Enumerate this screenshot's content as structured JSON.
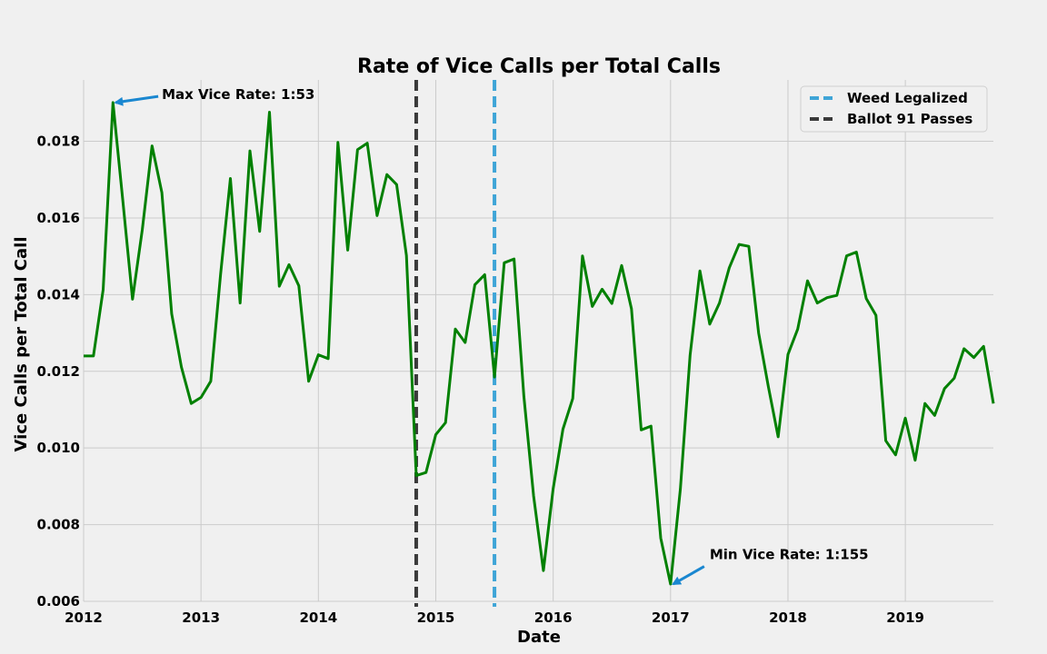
{
  "chart_data": {
    "type": "line",
    "title": "Rate of Vice Calls per Total Calls",
    "xlabel": "Date",
    "ylabel": "Vice Calls per Total Call",
    "xlim": [
      "2012-01",
      "2019-10"
    ],
    "ylim": [
      0.006,
      0.0196
    ],
    "x_ticks": [
      "2012",
      "2013",
      "2014",
      "2015",
      "2016",
      "2017",
      "2018",
      "2019"
    ],
    "y_ticks": [
      0.006,
      0.008,
      0.01,
      0.012,
      0.014,
      0.016,
      0.018
    ],
    "y_tick_labels": [
      "0.006",
      "0.008",
      "0.010",
      "0.012",
      "0.014",
      "0.016",
      "0.018"
    ],
    "grid": true,
    "line_color": "#008000",
    "series": [
      {
        "x": [
          "2012-01",
          "2012-02",
          "2012-03",
          "2012-04",
          "2012-05",
          "2012-06",
          "2012-07",
          "2012-08",
          "2012-09",
          "2012-10",
          "2012-11",
          "2012-12",
          "2013-01",
          "2013-02",
          "2013-03",
          "2013-04",
          "2013-05",
          "2013-06",
          "2013-07",
          "2013-08",
          "2013-09",
          "2013-10",
          "2013-11",
          "2013-12",
          "2014-01",
          "2014-02",
          "2014-03",
          "2014-04",
          "2014-05",
          "2014-06",
          "2014-07",
          "2014-08",
          "2014-09",
          "2014-10",
          "2014-11",
          "2014-12",
          "2015-01",
          "2015-02",
          "2015-03",
          "2015-04",
          "2015-05",
          "2015-06",
          "2015-07",
          "2015-08",
          "2015-09",
          "2015-10",
          "2015-11",
          "2015-12",
          "2016-01",
          "2016-02",
          "2016-03",
          "2016-04",
          "2016-05",
          "2016-06",
          "2016-07",
          "2016-08",
          "2016-09",
          "2016-10",
          "2016-11",
          "2016-12",
          "2017-01",
          "2017-02",
          "2017-03",
          "2017-04",
          "2017-05",
          "2017-06",
          "2017-07",
          "2017-08",
          "2017-09",
          "2017-10",
          "2017-11",
          "2017-12",
          "2018-01",
          "2018-02",
          "2018-03",
          "2018-04",
          "2018-05",
          "2018-06",
          "2018-07",
          "2018-08",
          "2018-09",
          "2018-10",
          "2018-11",
          "2018-12",
          "2019-01",
          "2019-02",
          "2019-03",
          "2019-04",
          "2019-05",
          "2019-06",
          "2019-07",
          "2019-08",
          "2019-09",
          "2019-10"
        ],
        "values": [
          0.0124,
          0.0124,
          0.01413,
          0.01901,
          0.01646,
          0.01388,
          0.0157,
          0.01788,
          0.01666,
          0.0135,
          0.01211,
          0.01116,
          0.01132,
          0.01174,
          0.01453,
          0.01703,
          0.01378,
          0.01775,
          0.01565,
          0.01876,
          0.01422,
          0.01478,
          0.01423,
          0.01174,
          0.01243,
          0.01233,
          0.01797,
          0.01516,
          0.01778,
          0.01795,
          0.01606,
          0.01713,
          0.01687,
          0.01502,
          0.00928,
          0.00936,
          0.01035,
          0.01066,
          0.0131,
          0.01275,
          0.01426,
          0.01452,
          0.01185,
          0.01483,
          0.01493,
          0.01135,
          0.00875,
          0.0068,
          0.00893,
          0.01049,
          0.01129,
          0.01501,
          0.01369,
          0.01414,
          0.01377,
          0.01476,
          0.01363,
          0.01047,
          0.01057,
          0.00765,
          0.00645,
          0.00893,
          0.01242,
          0.01462,
          0.01323,
          0.01378,
          0.0147,
          0.01531,
          0.01526,
          0.013,
          0.0116,
          0.01029,
          0.01244,
          0.0131,
          0.01436,
          0.01378,
          0.01392,
          0.01398,
          0.01501,
          0.01511,
          0.0139,
          0.01346,
          0.01019,
          0.00982,
          0.01078,
          0.00968,
          0.01116,
          0.01085,
          0.01155,
          0.01182,
          0.01259,
          0.01236,
          0.01265,
          0.01116
        ]
      }
    ],
    "vertical_lines": [
      {
        "x": "2015-07",
        "label": "Weed Legalized",
        "color": "#3fa5d7",
        "style": "dashed"
      },
      {
        "x": "2014-11",
        "label": "Ballot 91 Passes",
        "color": "#3a3a3a",
        "style": "dashed"
      }
    ],
    "annotations": [
      {
        "text": "Max Vice Rate: 1:53",
        "point": [
          "2012-04",
          0.01901
        ],
        "text_at": [
          "2012-09",
          0.0191
        ]
      },
      {
        "text": "Min Vice Rate: 1:155",
        "point": [
          "2017-01",
          0.00645
        ],
        "text_at": [
          "2017-05",
          0.0071
        ]
      }
    ],
    "legend_position": "top-right"
  }
}
